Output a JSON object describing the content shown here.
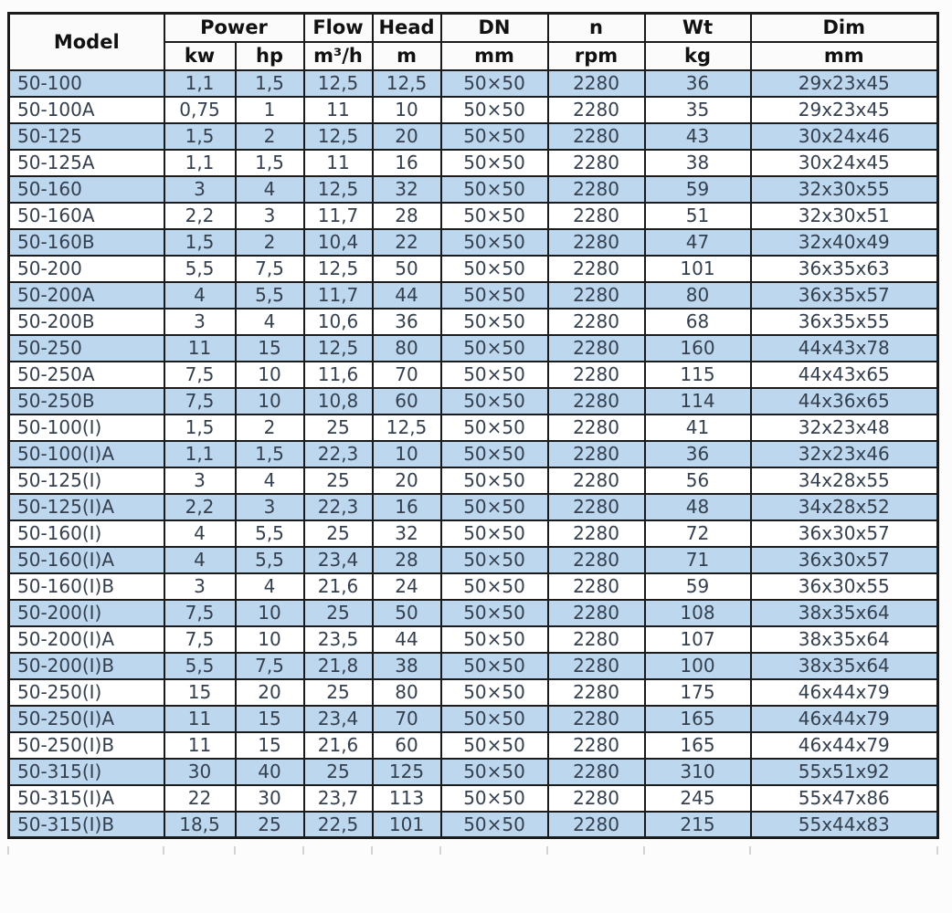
{
  "chart_data": {
    "type": "table",
    "header": {
      "model": "Model",
      "groups": [
        {
          "label": "Power",
          "units": [
            "kw",
            "hp"
          ]
        },
        {
          "label": "Flow",
          "unit": "m³/h"
        },
        {
          "label": "Head",
          "unit": "m"
        },
        {
          "label": "DN",
          "unit": "mm"
        },
        {
          "label": "n",
          "unit": "rpm"
        },
        {
          "label": "Wt",
          "unit": "kg"
        },
        {
          "label": "Dim",
          "unit": "mm"
        }
      ]
    },
    "columns": [
      "model",
      "kw",
      "hp",
      "flow",
      "head",
      "dn",
      "rpm",
      "wt",
      "dim"
    ],
    "rows": [
      [
        "50-100",
        "1,1",
        "1,5",
        "12,5",
        "12,5",
        "50×50",
        "2280",
        "36",
        "29x23x45"
      ],
      [
        "50-100A",
        "0,75",
        "1",
        "11",
        "10",
        "50×50",
        "2280",
        "35",
        "29x23x45"
      ],
      [
        "50-125",
        "1,5",
        "2",
        "12,5",
        "20",
        "50×50",
        "2280",
        "43",
        "30x24x46"
      ],
      [
        "50-125A",
        "1,1",
        "1,5",
        "11",
        "16",
        "50×50",
        "2280",
        "38",
        "30x24x45"
      ],
      [
        "50-160",
        "3",
        "4",
        "12,5",
        "32",
        "50×50",
        "2280",
        "59",
        "32x30x55"
      ],
      [
        "50-160A",
        "2,2",
        "3",
        "11,7",
        "28",
        "50×50",
        "2280",
        "51",
        "32x30x51"
      ],
      [
        "50-160B",
        "1,5",
        "2",
        "10,4",
        "22",
        "50×50",
        "2280",
        "47",
        "32x40x49"
      ],
      [
        "50-200",
        "5,5",
        "7,5",
        "12,5",
        "50",
        "50×50",
        "2280",
        "101",
        "36x35x63"
      ],
      [
        "50-200A",
        "4",
        "5,5",
        "11,7",
        "44",
        "50×50",
        "2280",
        "80",
        "36x35x57"
      ],
      [
        "50-200B",
        "3",
        "4",
        "10,6",
        "36",
        "50×50",
        "2280",
        "68",
        "36x35x55"
      ],
      [
        "50-250",
        "11",
        "15",
        "12,5",
        "80",
        "50×50",
        "2280",
        "160",
        "44x43x78"
      ],
      [
        "50-250A",
        "7,5",
        "10",
        "11,6",
        "70",
        "50×50",
        "2280",
        "115",
        "44x43x65"
      ],
      [
        "50-250B",
        "7,5",
        "10",
        "10,8",
        "60",
        "50×50",
        "2280",
        "114",
        "44x36x65"
      ],
      [
        "50-100(I)",
        "1,5",
        "2",
        "25",
        "12,5",
        "50×50",
        "2280",
        "41",
        "32x23x48"
      ],
      [
        "50-100(I)A",
        "1,1",
        "1,5",
        "22,3",
        "10",
        "50×50",
        "2280",
        "36",
        "32x23x46"
      ],
      [
        "50-125(I)",
        "3",
        "4",
        "25",
        "20",
        "50×50",
        "2280",
        "56",
        "34x28x55"
      ],
      [
        "50-125(I)A",
        "2,2",
        "3",
        "22,3",
        "16",
        "50×50",
        "2280",
        "48",
        "34x28x52"
      ],
      [
        "50-160(I)",
        "4",
        "5,5",
        "25",
        "32",
        "50×50",
        "2280",
        "72",
        "36x30x57"
      ],
      [
        "50-160(I)A",
        "4",
        "5,5",
        "23,4",
        "28",
        "50×50",
        "2280",
        "71",
        "36x30x57"
      ],
      [
        "50-160(I)B",
        "3",
        "4",
        "21,6",
        "24",
        "50×50",
        "2280",
        "59",
        "36x30x55"
      ],
      [
        "50-200(I)",
        "7,5",
        "10",
        "25",
        "50",
        "50×50",
        "2280",
        "108",
        "38x35x64"
      ],
      [
        "50-200(I)A",
        "7,5",
        "10",
        "23,5",
        "44",
        "50×50",
        "2280",
        "107",
        "38x35x64"
      ],
      [
        "50-200(I)B",
        "5,5",
        "7,5",
        "21,8",
        "38",
        "50×50",
        "2280",
        "100",
        "38x35x64"
      ],
      [
        "50-250(I)",
        "15",
        "20",
        "25",
        "80",
        "50×50",
        "2280",
        "175",
        "46x44x79"
      ],
      [
        "50-250(I)A",
        "11",
        "15",
        "23,4",
        "70",
        "50×50",
        "2280",
        "165",
        "46x44x79"
      ],
      [
        "50-250(I)B",
        "11",
        "15",
        "21,6",
        "60",
        "50×50",
        "2280",
        "165",
        "46x44x79"
      ],
      [
        "50-315(I)",
        "30",
        "40",
        "25",
        "125",
        "50×50",
        "2280",
        "310",
        "55x51x92"
      ],
      [
        "50-315(I)A",
        "22",
        "30",
        "23,7",
        "113",
        "50×50",
        "2280",
        "245",
        "55x47x86"
      ],
      [
        "50-315(I)B",
        "18,5",
        "25",
        "22,5",
        "101",
        "50×50",
        "2280",
        "215",
        "55x44x83"
      ]
    ]
  },
  "colors": {
    "row_highlight": "#bdd7ee",
    "grid": "#1b1b1b",
    "text": "#35404f"
  }
}
